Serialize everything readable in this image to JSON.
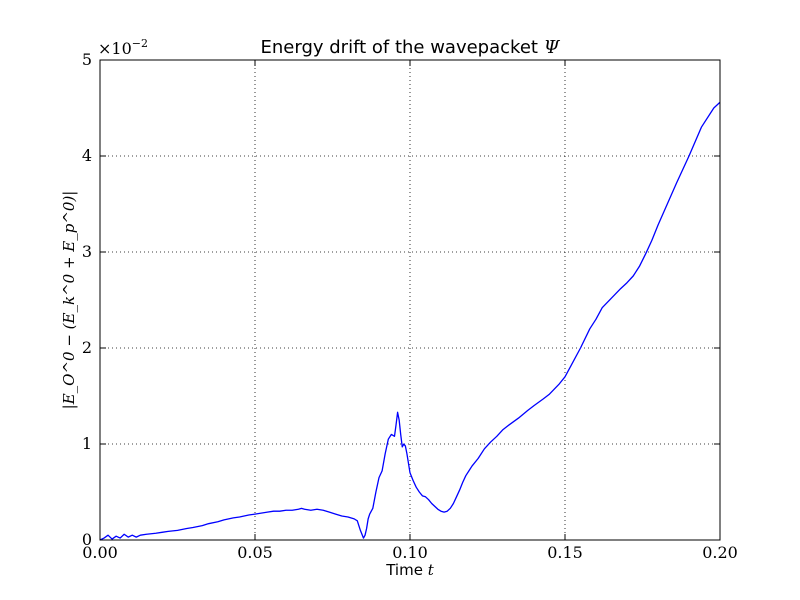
{
  "chart_data": {
    "type": "line",
    "title": "Energy drift of the wavepacket",
    "title_symbol": "Ψ",
    "xlabel": "Time",
    "xlabel_symbol": "t",
    "ylabel": "|E_O^0 − (E_k^0 + E_p^0)|",
    "y_multiplier": "×10",
    "y_multiplier_exp": "−2",
    "xlim": [
      0.0,
      0.2
    ],
    "ylim": [
      0,
      5
    ],
    "grid": true,
    "line_color": "#0000ff",
    "x_ticks": [
      {
        "value": 0.0,
        "label": "0.00"
      },
      {
        "value": 0.05,
        "label": "0.05"
      },
      {
        "value": 0.1,
        "label": "0.10"
      },
      {
        "value": 0.15,
        "label": "0.15"
      },
      {
        "value": 0.2,
        "label": "0.20"
      }
    ],
    "y_ticks": [
      {
        "value": 0,
        "label": "0"
      },
      {
        "value": 1,
        "label": "1"
      },
      {
        "value": 2,
        "label": "2"
      },
      {
        "value": 3,
        "label": "3"
      },
      {
        "value": 4,
        "label": "4"
      },
      {
        "value": 5,
        "label": "5"
      }
    ],
    "series": [
      {
        "x": [
          0.0,
          0.0013,
          0.0026,
          0.0039,
          0.0052,
          0.0065,
          0.0078,
          0.0091,
          0.0104,
          0.0117,
          0.013,
          0.015,
          0.018,
          0.02,
          0.022,
          0.025,
          0.028,
          0.03,
          0.033,
          0.035,
          0.038,
          0.04,
          0.043,
          0.045,
          0.048,
          0.05,
          0.052,
          0.054,
          0.056,
          0.058,
          0.06,
          0.062,
          0.064,
          0.065,
          0.066,
          0.068,
          0.07,
          0.072,
          0.074,
          0.076,
          0.078,
          0.08,
          0.082,
          0.083,
          0.084,
          0.085,
          0.0855,
          0.086,
          0.0865,
          0.087,
          0.0875,
          0.088,
          0.089,
          0.09,
          0.091,
          0.092,
          0.093,
          0.094,
          0.095,
          0.0955,
          0.096,
          0.0965,
          0.097,
          0.0975,
          0.098,
          0.0985,
          0.099,
          0.0995,
          0.1,
          0.1005,
          0.101,
          0.102,
          0.103,
          0.104,
          0.105,
          0.106,
          0.107,
          0.108,
          0.109,
          0.11,
          0.111,
          0.112,
          0.113,
          0.114,
          0.115,
          0.116,
          0.117,
          0.118,
          0.119,
          0.12,
          0.122,
          0.124,
          0.126,
          0.128,
          0.13,
          0.132,
          0.135,
          0.138,
          0.14,
          0.143,
          0.145,
          0.148,
          0.15,
          0.152,
          0.155,
          0.158,
          0.16,
          0.162,
          0.165,
          0.168,
          0.17,
          0.172,
          0.174,
          0.176,
          0.178,
          0.18,
          0.183,
          0.186,
          0.19,
          0.194,
          0.198,
          0.2
        ],
        "y": [
          0.0,
          0.02,
          0.05,
          0.01,
          0.04,
          0.02,
          0.06,
          0.03,
          0.05,
          0.03,
          0.05,
          0.06,
          0.07,
          0.08,
          0.09,
          0.1,
          0.12,
          0.13,
          0.15,
          0.17,
          0.19,
          0.21,
          0.23,
          0.24,
          0.26,
          0.27,
          0.28,
          0.29,
          0.3,
          0.3,
          0.31,
          0.31,
          0.32,
          0.33,
          0.32,
          0.31,
          0.32,
          0.31,
          0.29,
          0.27,
          0.25,
          0.24,
          0.22,
          0.2,
          0.1,
          0.02,
          0.05,
          0.12,
          0.22,
          0.27,
          0.3,
          0.33,
          0.5,
          0.65,
          0.72,
          0.9,
          1.05,
          1.1,
          1.08,
          1.2,
          1.33,
          1.25,
          1.1,
          0.97,
          1.0,
          0.98,
          0.9,
          0.8,
          0.7,
          0.66,
          0.62,
          0.55,
          0.5,
          0.46,
          0.45,
          0.42,
          0.38,
          0.35,
          0.32,
          0.3,
          0.29,
          0.3,
          0.33,
          0.38,
          0.45,
          0.52,
          0.6,
          0.67,
          0.72,
          0.77,
          0.85,
          0.95,
          1.02,
          1.08,
          1.15,
          1.2,
          1.27,
          1.35,
          1.4,
          1.47,
          1.52,
          1.62,
          1.7,
          1.82,
          2.0,
          2.2,
          2.3,
          2.42,
          2.52,
          2.62,
          2.68,
          2.75,
          2.85,
          2.98,
          3.12,
          3.28,
          3.5,
          3.72,
          4.0,
          4.3,
          4.5,
          4.56
        ]
      }
    ]
  }
}
